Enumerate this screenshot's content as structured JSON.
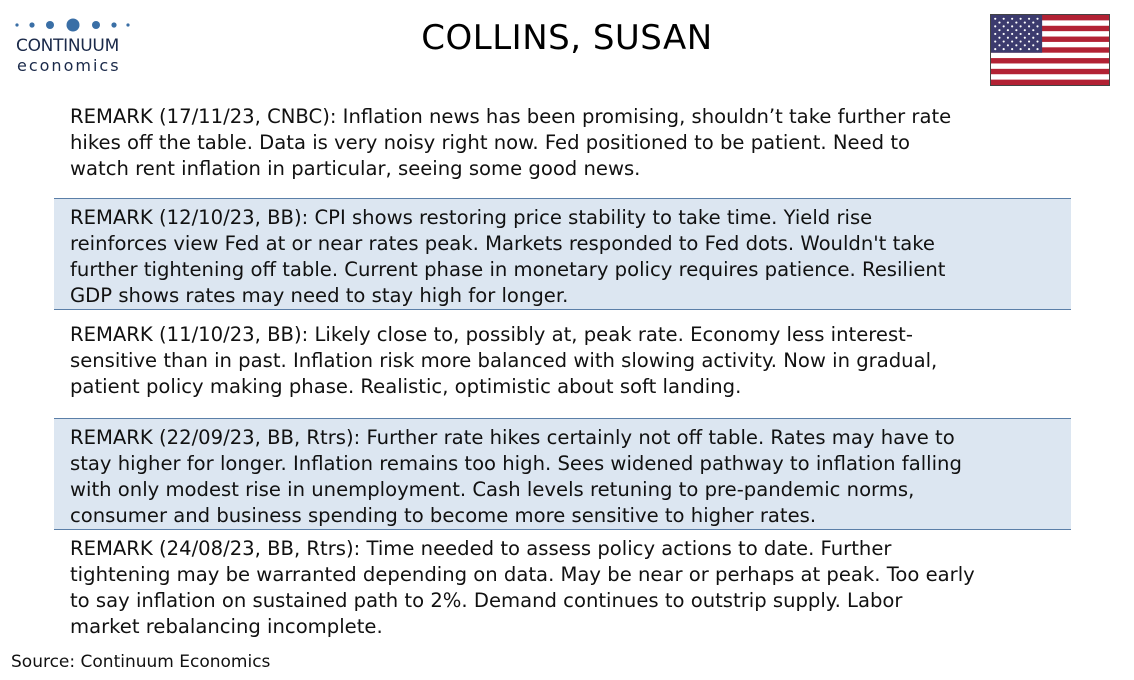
{
  "logo": {
    "name": "CONTINUUM",
    "sub": "economics",
    "color": "#1b2a4a",
    "dots_color": "#3a6fa6"
  },
  "title": "COLLINS, SUSAN",
  "flag": {
    "icon": "us-flag-icon",
    "colors": {
      "red": "#b22234",
      "white": "#ffffff",
      "blue": "#3c3b6e"
    }
  },
  "remarks": [
    {
      "lines": [
        "REMARK (17/11/23, CNBC): Inflation news has been promising, shouldn’t take further rate",
        "hikes off the table. Data is very noisy right now. Fed positioned to be patient.  Need to",
        "watch rent inflation in particular, seeing some good news."
      ],
      "shaded": false
    },
    {
      "lines": [
        "REMARK (12/10/23, BB): CPI shows restoring price stability to take time. Yield rise",
        "reinforces view Fed at or near rates peak. Markets responded to Fed dots. Wouldn't take",
        "further tightening off table. Current phase in monetary policy requires patience. Resilient",
        "GDP shows rates may need to stay high for longer."
      ],
      "shaded": true
    },
    {
      "lines": [
        "REMARK (11/10/23, BB): Likely close to, possibly at, peak rate. Economy less interest-",
        "sensitive than in past. Inflation risk more balanced with slowing activity. Now in gradual,",
        "patient policy making phase. Realistic, optimistic about soft landing."
      ],
      "shaded": false
    },
    {
      "lines": [
        "REMARK (22/09/23, BB, Rtrs): Further rate hikes certainly not off table. Rates may have to",
        "stay higher for longer. Inflation remains too high. Sees widened pathway to inflation falling",
        "with only modest rise in unemployment. Cash levels retuning to pre-pandemic norms,",
        "consumer and business spending to become more sensitive to higher rates."
      ],
      "shaded": true
    },
    {
      "lines": [
        "REMARK (24/08/23, BB, Rtrs): Time needed to assess policy actions to date. Further",
        "tightening may be warranted depending on data. May be near or perhaps at peak. Too early",
        "to say inflation on sustained path to 2%. Demand continues to outstrip supply. Labor",
        "market rebalancing incomplete."
      ],
      "shaded": false
    }
  ],
  "source": "Source: Continuum Economics",
  "colors": {
    "shade": "#dce6f1",
    "rule": "#5b7fa8"
  }
}
